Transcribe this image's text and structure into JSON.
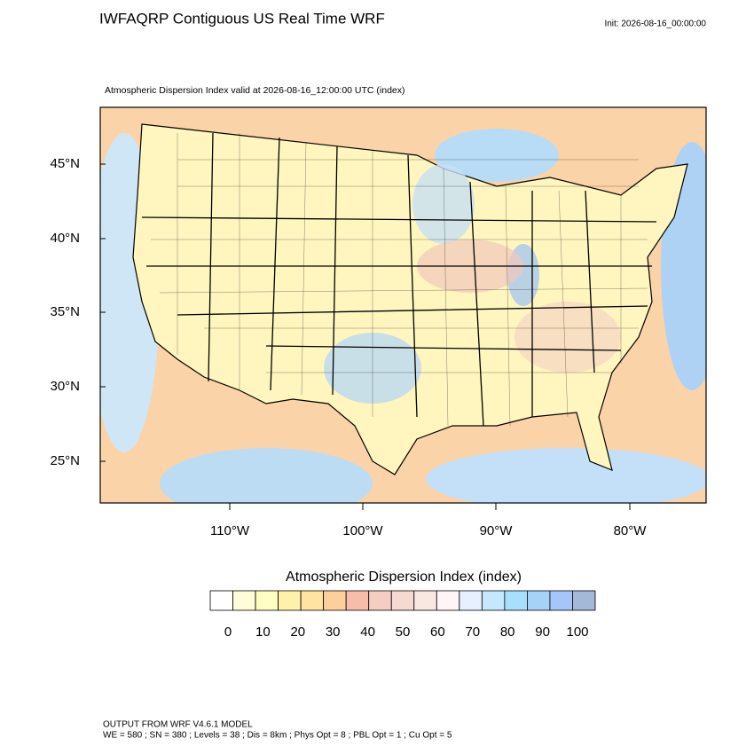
{
  "header": {
    "title": "IWFAQRP Contiguous US Real Time WRF",
    "init": "Init: 2026-08-16_00:00:00",
    "subtitle": "Atmospheric Dispersion Index valid at 2026-08-16_12:00:00 UTC   (index)"
  },
  "map": {
    "lat_labels": [
      "45°N",
      "40°N",
      "35°N",
      "30°N",
      "25°N"
    ],
    "lon_labels": [
      "110°W",
      "100°W",
      "90°W",
      "80°W"
    ]
  },
  "colorbar": {
    "title": "Atmospheric Dispersion Index  (index)",
    "colors": [
      "#ffffff",
      "#fffcd8",
      "#ffffc0",
      "#fff2a8",
      "#ffe3a0",
      "#fdd09a",
      "#f8bca8",
      "#f5cdc3",
      "#f6dad2",
      "#f9e7e2",
      "#fff4f6",
      "#e6f0ff",
      "#c6e8ff",
      "#a8e0fc",
      "#a6d2f8",
      "#a6c6fa",
      "#a4b8d8"
    ],
    "ticks": [
      0,
      10,
      20,
      30,
      40,
      50,
      60,
      70,
      80,
      90,
      100
    ]
  },
  "footer": {
    "line1": "OUTPUT FROM WRF V4.6.1 MODEL",
    "line2": "WE = 580 ; SN = 380 ; Levels = 38 ; Dis = 8km ; Phys Opt = 8 ; PBL Opt = 1 ; Cu Opt = 5"
  }
}
